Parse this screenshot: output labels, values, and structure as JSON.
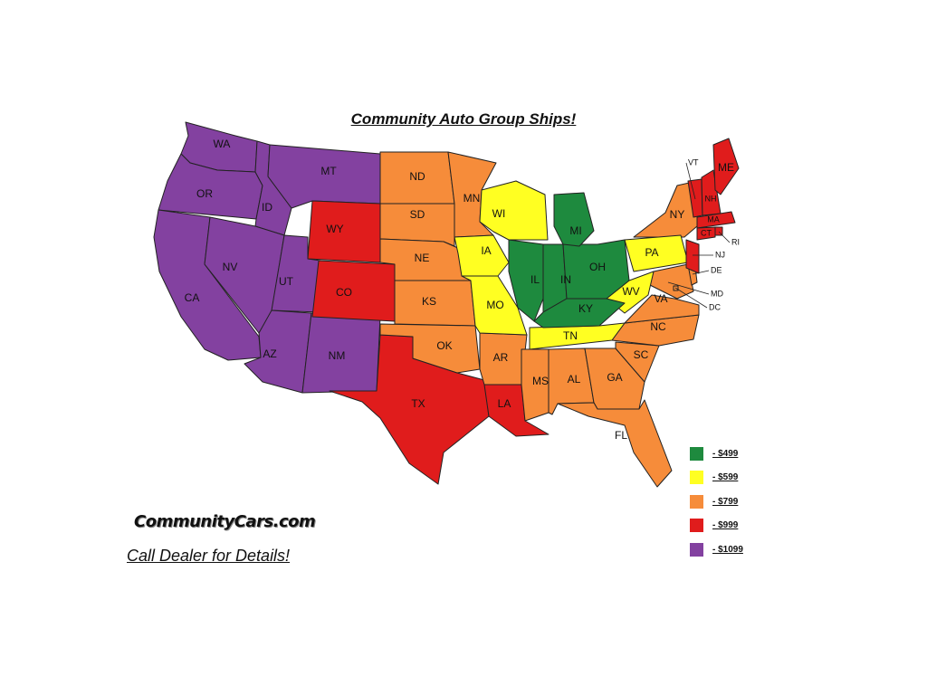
{
  "title": "Community Auto Group Ships!",
  "logo_text": "CommunityCars.com",
  "cta": "Call Dealer for Details!",
  "tiers": {
    "green": {
      "label": "- $499",
      "color": "#1e8a3e"
    },
    "yellow": {
      "label": "- $599",
      "color": "#ffff22"
    },
    "orange": {
      "label": "- $799",
      "color": "#f68c3a"
    },
    "red": {
      "label": "- $999",
      "color": "#e01c1c"
    },
    "purple": {
      "label": "- $1099",
      "color": "#8341a0"
    }
  },
  "legend_order": [
    "green",
    "yellow",
    "orange",
    "red",
    "purple"
  ],
  "states": [
    {
      "abbr": "WA",
      "tier": "purple"
    },
    {
      "abbr": "OR",
      "tier": "purple"
    },
    {
      "abbr": "CA",
      "tier": "purple"
    },
    {
      "abbr": "ID",
      "tier": "purple"
    },
    {
      "abbr": "NV",
      "tier": "purple"
    },
    {
      "abbr": "MT",
      "tier": "purple"
    },
    {
      "abbr": "UT",
      "tier": "purple"
    },
    {
      "abbr": "AZ",
      "tier": "purple"
    },
    {
      "abbr": "NM",
      "tier": "purple"
    },
    {
      "abbr": "WY",
      "tier": "red"
    },
    {
      "abbr": "CO",
      "tier": "red"
    },
    {
      "abbr": "TX",
      "tier": "red"
    },
    {
      "abbr": "LA",
      "tier": "red"
    },
    {
      "abbr": "ND",
      "tier": "orange"
    },
    {
      "abbr": "SD",
      "tier": "orange"
    },
    {
      "abbr": "NE",
      "tier": "orange"
    },
    {
      "abbr": "KS",
      "tier": "orange"
    },
    {
      "abbr": "OK",
      "tier": "orange"
    },
    {
      "abbr": "MN",
      "tier": "orange"
    },
    {
      "abbr": "AR",
      "tier": "orange"
    },
    {
      "abbr": "MS",
      "tier": "orange"
    },
    {
      "abbr": "AL",
      "tier": "orange"
    },
    {
      "abbr": "GA",
      "tier": "orange"
    },
    {
      "abbr": "FL",
      "tier": "orange"
    },
    {
      "abbr": "SC",
      "tier": "orange"
    },
    {
      "abbr": "NC",
      "tier": "orange"
    },
    {
      "abbr": "VA",
      "tier": "orange"
    },
    {
      "abbr": "NY",
      "tier": "orange"
    },
    {
      "abbr": "MD",
      "tier": "orange"
    },
    {
      "abbr": "DE",
      "tier": "orange"
    },
    {
      "abbr": "DC",
      "tier": "orange"
    },
    {
      "abbr": "IA",
      "tier": "yellow"
    },
    {
      "abbr": "MO",
      "tier": "yellow"
    },
    {
      "abbr": "WI",
      "tier": "yellow"
    },
    {
      "abbr": "TN",
      "tier": "yellow"
    },
    {
      "abbr": "WV",
      "tier": "yellow"
    },
    {
      "abbr": "PA",
      "tier": "yellow"
    },
    {
      "abbr": "IL",
      "tier": "green"
    },
    {
      "abbr": "IN",
      "tier": "green"
    },
    {
      "abbr": "OH",
      "tier": "green"
    },
    {
      "abbr": "MI",
      "tier": "green"
    },
    {
      "abbr": "KY",
      "tier": "green"
    },
    {
      "abbr": "VT",
      "tier": "red"
    },
    {
      "abbr": "NH",
      "tier": "red"
    },
    {
      "abbr": "ME",
      "tier": "red"
    },
    {
      "abbr": "MA",
      "tier": "red"
    },
    {
      "abbr": "CT",
      "tier": "red"
    },
    {
      "abbr": "RI",
      "tier": "red"
    },
    {
      "abbr": "NJ",
      "tier": "red"
    }
  ]
}
